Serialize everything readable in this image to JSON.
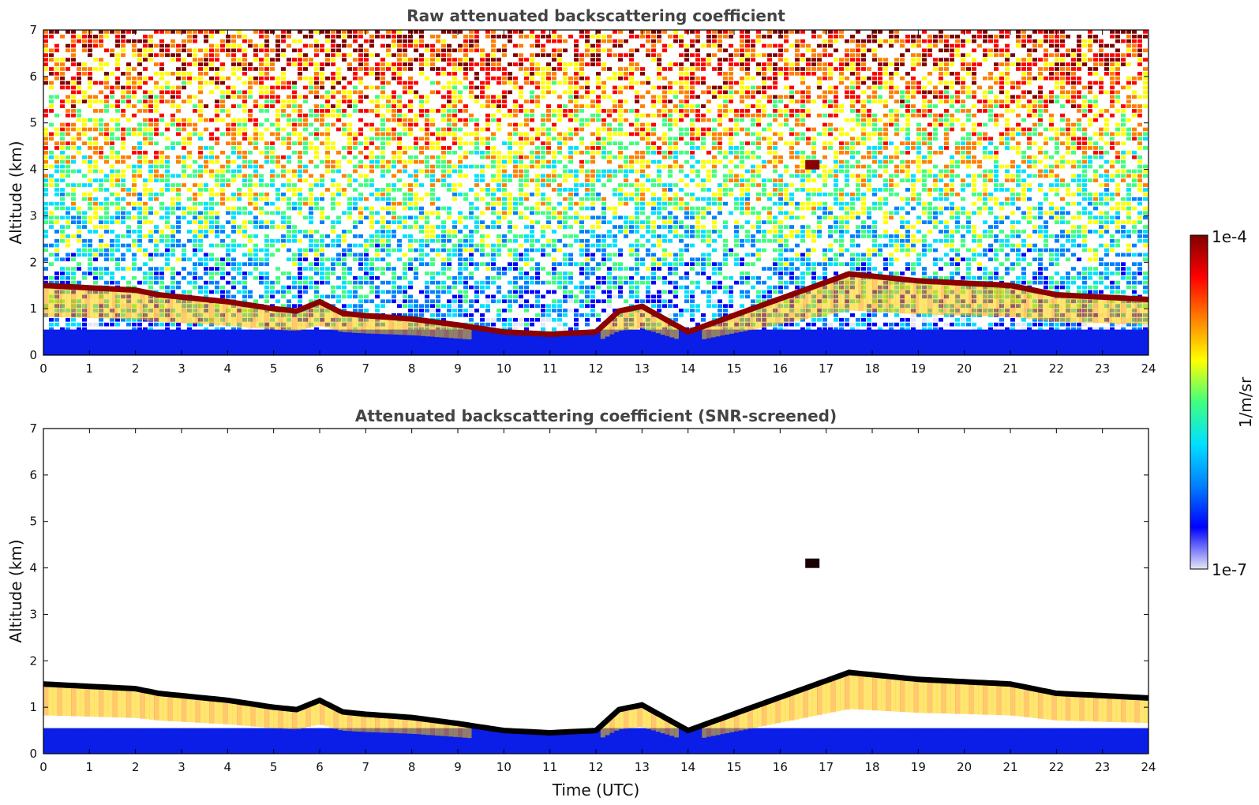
{
  "chart_data": [
    {
      "type": "heatmap",
      "title": "Raw attenuated backscattering coefficient",
      "xlabel": "",
      "ylabel": "Altitude (km)",
      "xlim": [
        0,
        24
      ],
      "ylim": [
        0,
        7
      ],
      "x_ticks": [
        "0",
        "1",
        "2",
        "3",
        "4",
        "5",
        "6",
        "7",
        "8",
        "9",
        "10",
        "11",
        "12",
        "13",
        "14",
        "15",
        "16",
        "17",
        "18",
        "19",
        "20",
        "21",
        "22",
        "23",
        "24"
      ],
      "y_ticks": [
        "0",
        "1",
        "2",
        "3",
        "4",
        "5",
        "6",
        "7"
      ],
      "cloud_base": {
        "time": [
          0,
          1,
          2,
          2.5,
          3,
          4,
          5,
          5.5,
          6,
          6.5,
          7,
          8,
          9,
          10,
          11,
          12,
          12.5,
          13,
          14,
          17.5,
          18,
          19,
          20,
          21,
          22,
          23,
          24
        ],
        "altitude_km": [
          1.5,
          1.45,
          1.4,
          1.3,
          1.25,
          1.15,
          1.0,
          0.95,
          1.15,
          0.9,
          0.85,
          0.78,
          0.65,
          0.5,
          0.45,
          0.5,
          0.95,
          1.05,
          0.5,
          1.75,
          1.7,
          1.6,
          1.55,
          1.5,
          1.3,
          1.25,
          1.2
        ]
      },
      "isolated_feature": {
        "time": 16.7,
        "altitude_km": 4.1
      },
      "noise": "present"
    },
    {
      "type": "heatmap",
      "title": "Attenuated backscattering coefficient (SNR-screened)",
      "xlabel": "Time (UTC)",
      "ylabel": "Altitude (km)",
      "xlim": [
        0,
        24
      ],
      "ylim": [
        0,
        7
      ],
      "x_ticks": [
        "0",
        "1",
        "2",
        "3",
        "4",
        "5",
        "6",
        "7",
        "8",
        "9",
        "10",
        "11",
        "12",
        "13",
        "14",
        "15",
        "16",
        "17",
        "18",
        "19",
        "20",
        "21",
        "22",
        "23",
        "24"
      ],
      "y_ticks": [
        "0",
        "1",
        "2",
        "3",
        "4",
        "5",
        "6",
        "7"
      ],
      "cloud_base": {
        "time": [
          0,
          1,
          2,
          2.5,
          3,
          4,
          5,
          5.5,
          6,
          6.5,
          7,
          8,
          9,
          10,
          11,
          12,
          12.5,
          13,
          14,
          17.5,
          18,
          19,
          20,
          21,
          22,
          23,
          24
        ],
        "altitude_km": [
          1.5,
          1.45,
          1.4,
          1.3,
          1.25,
          1.15,
          1.0,
          0.95,
          1.15,
          0.9,
          0.85,
          0.78,
          0.65,
          0.5,
          0.45,
          0.5,
          0.95,
          1.05,
          0.5,
          1.75,
          1.7,
          1.6,
          1.55,
          1.5,
          1.3,
          1.25,
          1.2
        ]
      },
      "isolated_feature": {
        "time": 16.7,
        "altitude_km": 4.1
      },
      "noise": "screened"
    }
  ],
  "colorbar": {
    "max_label": "1e-4",
    "min_label": "1e-7",
    "label": "1/m/sr",
    "colors": [
      "#e6e6f5",
      "#0000ff",
      "#0080ff",
      "#00e0ff",
      "#40ff80",
      "#ffff00",
      "#ff8000",
      "#ff0000",
      "#800000"
    ]
  }
}
